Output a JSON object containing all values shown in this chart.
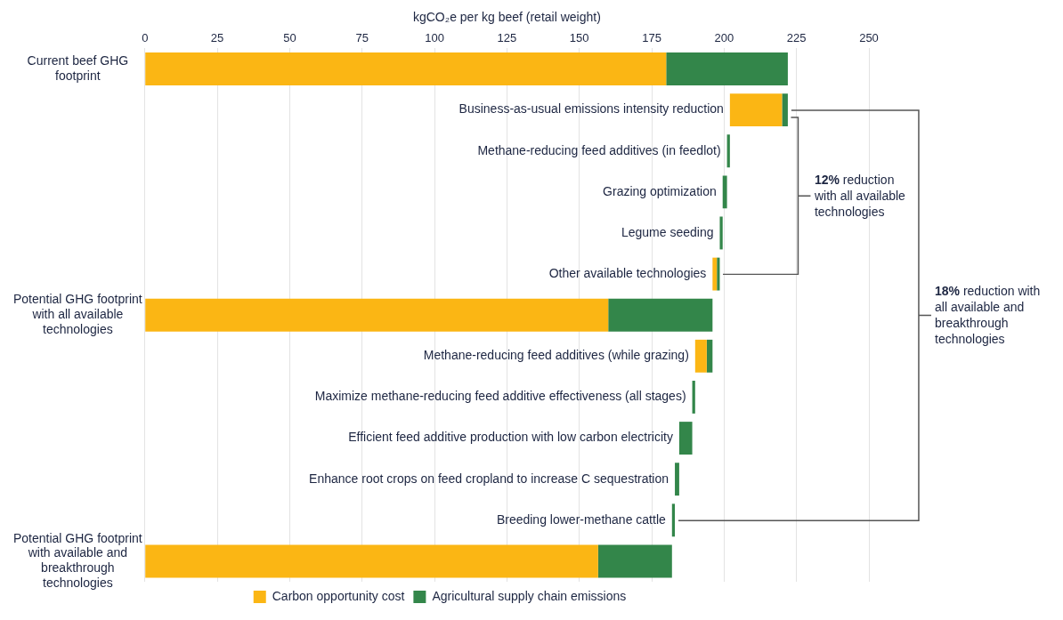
{
  "chart_data": {
    "type": "bar",
    "orientation": "horizontal",
    "xlabel": "kgCO₂e per kg beef (retail weight)",
    "categories": [
      "Current beef GHG footprint",
      "Business-as-usual emissions intensity reduction",
      "Methane-reducing feed additives (in feedlot)",
      "Grazing optimization",
      "Legume seeding",
      "Other available technologies",
      "Potential GHG footprint with all available technologies",
      "Methane-reducing feed additives (while grazing)",
      "Maximize methane-reducing feed additive effectiveness (all stages)",
      "Efficient feed additive production with low carbon electricity",
      "Enhance root crops on feed cropland to increase C sequestration",
      "Breeding lower-methane cattle",
      "Potential GHG footprint with available and breakthrough technologies"
    ],
    "series": [
      {
        "name": "Carbon opportunity cost",
        "color": "#fbb614",
        "base": [
          0,
          202,
          null,
          null,
          null,
          196,
          0,
          190,
          null,
          null,
          null,
          null,
          0
        ],
        "values": [
          180,
          18,
          null,
          null,
          null,
          1.5,
          160,
          4,
          null,
          null,
          null,
          null,
          156.5
        ]
      },
      {
        "name": "Agricultural supply chain emissions",
        "color": "#33864a",
        "base": [
          180,
          220,
          201,
          199.5,
          198.5,
          197.5,
          160,
          194,
          189,
          184.5,
          183,
          182,
          156.5
        ],
        "values": [
          42,
          2,
          1,
          1.5,
          1,
          1,
          36,
          2,
          1,
          4.5,
          1.5,
          1,
          25.5
        ]
      }
    ],
    "xlim": [
      0,
      250
    ],
    "xticks": [
      0,
      25,
      50,
      75,
      100,
      125,
      150,
      175,
      200,
      225,
      250
    ],
    "grid": "x",
    "legend": "bottom",
    "annotations": [
      "12% reduction with all available technologies",
      "18% reduction with all available and breakthrough technologies"
    ]
  }
}
